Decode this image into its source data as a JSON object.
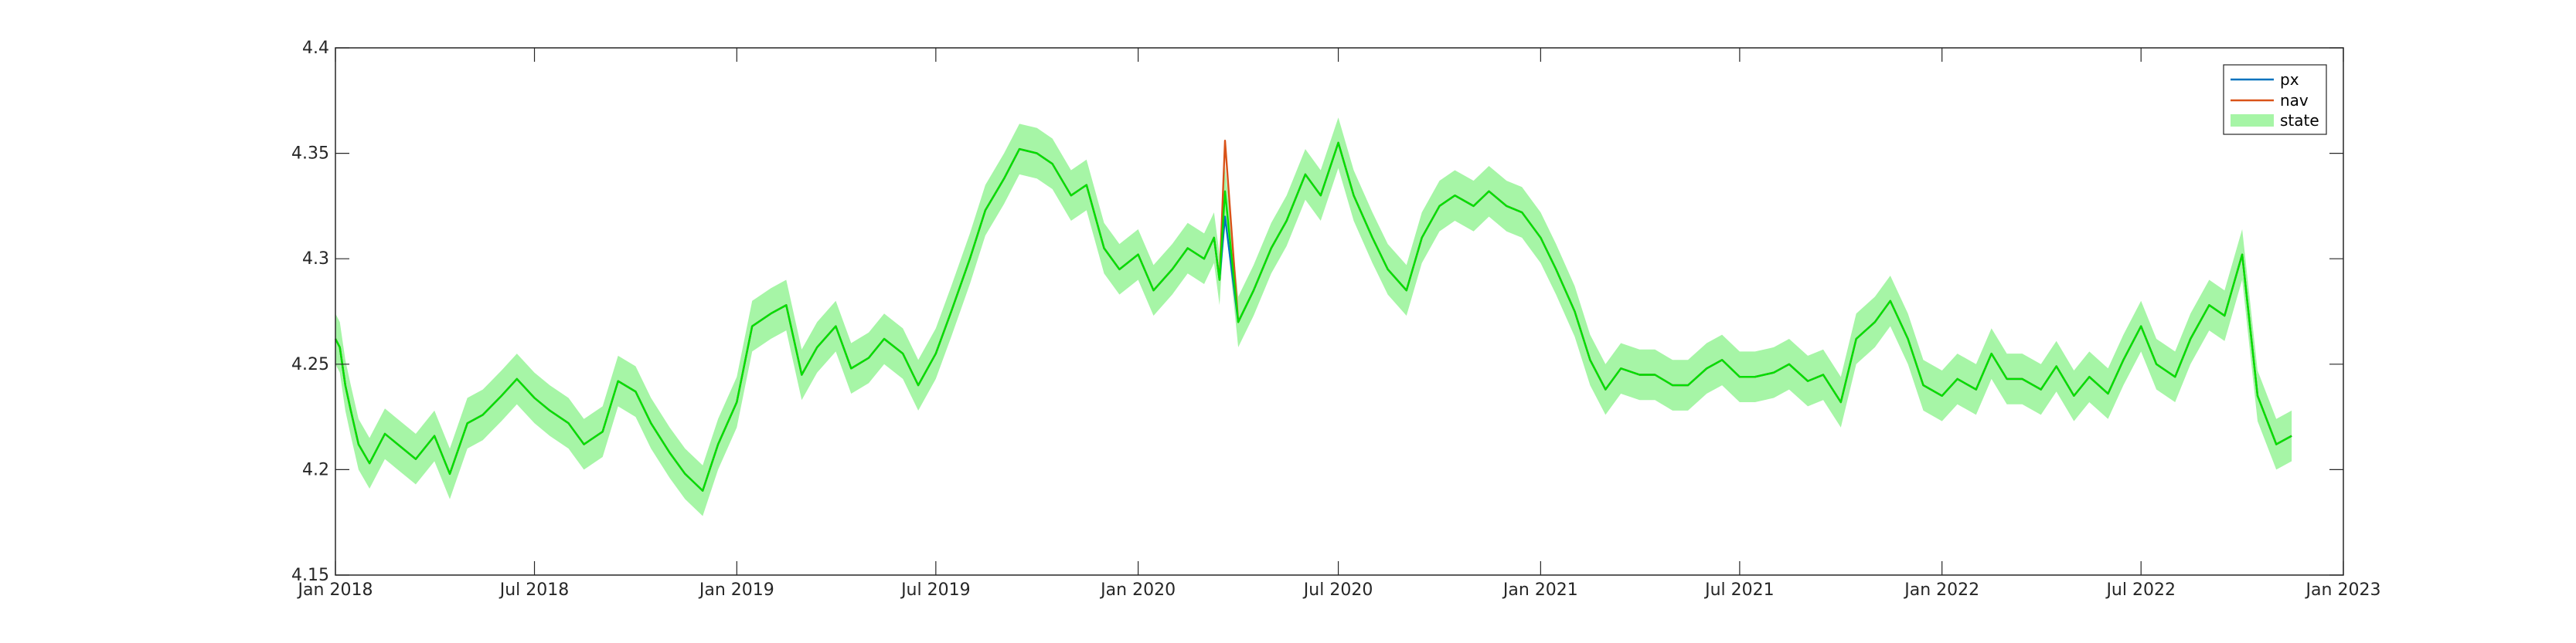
{
  "chart_data": {
    "type": "line",
    "title": "",
    "xlabel": "",
    "ylabel": "",
    "x_range": [
      "2018-01-01",
      "2023-01-01"
    ],
    "ylim": [
      4.15,
      4.4
    ],
    "x_ticks": [
      {
        "date": "2018-01-01",
        "label": "Jan 2018"
      },
      {
        "date": "2018-07-01",
        "label": "Jul 2018"
      },
      {
        "date": "2019-01-01",
        "label": "Jan 2019"
      },
      {
        "date": "2019-07-01",
        "label": "Jul 2019"
      },
      {
        "date": "2020-01-01",
        "label": "Jan 2020"
      },
      {
        "date": "2020-07-01",
        "label": "Jul 2020"
      },
      {
        "date": "2021-01-01",
        "label": "Jan 2021"
      },
      {
        "date": "2021-07-01",
        "label": "Jul 2021"
      },
      {
        "date": "2022-01-01",
        "label": "Jan 2022"
      },
      {
        "date": "2022-07-01",
        "label": "Jul 2022"
      },
      {
        "date": "2023-01-01",
        "label": "Jan 2023"
      }
    ],
    "y_ticks": [
      {
        "value": 4.15,
        "label": "4.15"
      },
      {
        "value": 4.2,
        "label": "4.2"
      },
      {
        "value": 4.25,
        "label": "4.25"
      },
      {
        "value": 4.3,
        "label": "4.3"
      },
      {
        "value": 4.35,
        "label": "4.35"
      },
      {
        "value": 4.4,
        "label": "4.4"
      }
    ],
    "grid": false,
    "legend_position": "top-right",
    "band_halfwidth": 0.012,
    "series": [
      {
        "name": "px",
        "kind": "line",
        "color": "#0072BD"
      },
      {
        "name": "nav",
        "kind": "line",
        "color": "#D95319"
      },
      {
        "name": "state",
        "kind": "line+band",
        "color": "#00E000",
        "band_color": "#A6F5A6"
      }
    ],
    "x": [
      "2018-01-01",
      "2018-01-05",
      "2018-01-10",
      "2018-01-15",
      "2018-01-22",
      "2018-02-01",
      "2018-02-15",
      "2018-03-01",
      "2018-03-15",
      "2018-04-01",
      "2018-04-15",
      "2018-05-01",
      "2018-05-15",
      "2018-06-01",
      "2018-06-15",
      "2018-07-01",
      "2018-07-15",
      "2018-08-01",
      "2018-08-15",
      "2018-09-01",
      "2018-09-15",
      "2018-10-01",
      "2018-10-15",
      "2018-11-01",
      "2018-11-15",
      "2018-12-01",
      "2018-12-15",
      "2019-01-01",
      "2019-01-15",
      "2019-02-01",
      "2019-02-15",
      "2019-03-01",
      "2019-03-15",
      "2019-04-01",
      "2019-04-15",
      "2019-05-01",
      "2019-05-15",
      "2019-06-01",
      "2019-06-15",
      "2019-07-01",
      "2019-07-15",
      "2019-08-01",
      "2019-08-15",
      "2019-09-01",
      "2019-09-15",
      "2019-10-01",
      "2019-10-15",
      "2019-11-01",
      "2019-11-15",
      "2019-12-01",
      "2019-12-15",
      "2020-01-01",
      "2020-01-15",
      "2020-02-01",
      "2020-02-15",
      "2020-03-01",
      "2020-03-10",
      "2020-03-15",
      "2020-03-20",
      "2020-04-01",
      "2020-04-15",
      "2020-05-01",
      "2020-05-15",
      "2020-06-01",
      "2020-06-15",
      "2020-07-01",
      "2020-07-15",
      "2020-08-01",
      "2020-08-15",
      "2020-09-01",
      "2020-09-15",
      "2020-10-01",
      "2020-10-15",
      "2020-11-01",
      "2020-11-15",
      "2020-12-01",
      "2020-12-15",
      "2021-01-01",
      "2021-01-15",
      "2021-02-01",
      "2021-02-15",
      "2021-03-01",
      "2021-03-15",
      "2021-04-01",
      "2021-04-15",
      "2021-05-01",
      "2021-05-15",
      "2021-06-01",
      "2021-06-15",
      "2021-07-01",
      "2021-07-15",
      "2021-08-01",
      "2021-08-15",
      "2021-09-01",
      "2021-09-15",
      "2021-10-01",
      "2021-10-15",
      "2021-11-01",
      "2021-11-15",
      "2021-12-01",
      "2021-12-15",
      "2022-01-01",
      "2022-01-15",
      "2022-02-01",
      "2022-02-15",
      "2022-03-01",
      "2022-03-15",
      "2022-04-01",
      "2022-04-15",
      "2022-05-01",
      "2022-05-15",
      "2022-06-01",
      "2022-06-15",
      "2022-07-01",
      "2022-07-15",
      "2022-08-01",
      "2022-08-15",
      "2022-09-01",
      "2022-09-15",
      "2022-10-01",
      "2022-10-15",
      "2022-11-01",
      "2022-11-15"
    ],
    "values": {
      "px": [
        4.262,
        4.258,
        4.24,
        4.228,
        4.212,
        4.203,
        4.217,
        4.211,
        4.205,
        4.216,
        4.198,
        4.222,
        4.226,
        4.235,
        4.243,
        4.234,
        4.228,
        4.222,
        4.212,
        4.218,
        4.242,
        4.237,
        4.222,
        4.208,
        4.198,
        4.19,
        4.212,
        4.232,
        4.268,
        4.274,
        4.278,
        4.245,
        4.258,
        4.268,
        4.248,
        4.253,
        4.262,
        4.255,
        4.24,
        4.255,
        4.275,
        4.3,
        4.323,
        4.338,
        4.352,
        4.35,
        4.345,
        4.33,
        4.335,
        4.305,
        4.295,
        4.302,
        4.285,
        4.295,
        4.305,
        4.3,
        4.31,
        4.29,
        4.32,
        4.27,
        4.285,
        4.305,
        4.318,
        4.34,
        4.33,
        4.355,
        4.33,
        4.31,
        4.295,
        4.285,
        4.31,
        4.325,
        4.33,
        4.325,
        4.332,
        4.325,
        4.322,
        4.31,
        4.295,
        4.275,
        4.252,
        4.238,
        4.248,
        4.245,
        4.245,
        4.24,
        4.24,
        4.248,
        4.252,
        4.244,
        4.244,
        4.246,
        4.25,
        4.242,
        4.245,
        4.232,
        4.262,
        4.27,
        4.28,
        4.262,
        4.24,
        4.235,
        4.243,
        4.238,
        4.255,
        4.243,
        4.243,
        4.238,
        4.249,
        4.235,
        4.244,
        4.236,
        4.252,
        4.268,
        4.25,
        4.244,
        4.262,
        4.278,
        4.273,
        4.302,
        4.235,
        4.212,
        4.216
      ],
      "nav": [
        4.262,
        4.258,
        4.24,
        4.228,
        4.212,
        4.203,
        4.217,
        4.211,
        4.205,
        4.216,
        4.198,
        4.222,
        4.226,
        4.235,
        4.243,
        4.234,
        4.228,
        4.222,
        4.212,
        4.218,
        4.242,
        4.237,
        4.222,
        4.208,
        4.198,
        4.19,
        4.212,
        4.232,
        4.268,
        4.274,
        4.278,
        4.245,
        4.258,
        4.268,
        4.248,
        4.253,
        4.262,
        4.255,
        4.24,
        4.255,
        4.275,
        4.3,
        4.323,
        4.338,
        4.352,
        4.35,
        4.345,
        4.33,
        4.335,
        4.305,
        4.295,
        4.302,
        4.285,
        4.295,
        4.305,
        4.3,
        4.31,
        4.29,
        4.356,
        4.27,
        4.285,
        4.305,
        4.318,
        4.34,
        4.33,
        4.355,
        4.33,
        4.31,
        4.295,
        4.285,
        4.31,
        4.325,
        4.33,
        4.325,
        4.332,
        4.325,
        4.322,
        4.31,
        4.295,
        4.275,
        4.252,
        4.238,
        4.248,
        4.245,
        4.245,
        4.24,
        4.24,
        4.248,
        4.252,
        4.244,
        4.244,
        4.246,
        4.25,
        4.242,
        4.245,
        4.232,
        4.262,
        4.27,
        4.28,
        4.262,
        4.24,
        4.235,
        4.243,
        4.238,
        4.255,
        4.243,
        4.243,
        4.238,
        4.249,
        4.235,
        4.244,
        4.236,
        4.252,
        4.268,
        4.25,
        4.244,
        4.262,
        4.278,
        4.273,
        4.302,
        4.235,
        4.212,
        4.216
      ],
      "state": [
        4.262,
        4.258,
        4.24,
        4.228,
        4.212,
        4.203,
        4.217,
        4.211,
        4.205,
        4.216,
        4.198,
        4.222,
        4.226,
        4.235,
        4.243,
        4.234,
        4.228,
        4.222,
        4.212,
        4.218,
        4.242,
        4.237,
        4.222,
        4.208,
        4.198,
        4.19,
        4.212,
        4.232,
        4.268,
        4.274,
        4.278,
        4.245,
        4.258,
        4.268,
        4.248,
        4.253,
        4.262,
        4.255,
        4.24,
        4.255,
        4.275,
        4.3,
        4.323,
        4.338,
        4.352,
        4.35,
        4.345,
        4.33,
        4.335,
        4.305,
        4.295,
        4.302,
        4.285,
        4.295,
        4.305,
        4.3,
        4.31,
        4.29,
        4.332,
        4.27,
        4.285,
        4.305,
        4.318,
        4.34,
        4.33,
        4.355,
        4.33,
        4.31,
        4.295,
        4.285,
        4.31,
        4.325,
        4.33,
        4.325,
        4.332,
        4.325,
        4.322,
        4.31,
        4.295,
        4.275,
        4.252,
        4.238,
        4.248,
        4.245,
        4.245,
        4.24,
        4.24,
        4.248,
        4.252,
        4.244,
        4.244,
        4.246,
        4.25,
        4.242,
        4.245,
        4.232,
        4.262,
        4.27,
        4.28,
        4.262,
        4.24,
        4.235,
        4.243,
        4.238,
        4.255,
        4.243,
        4.243,
        4.238,
        4.249,
        4.235,
        4.244,
        4.236,
        4.252,
        4.268,
        4.25,
        4.244,
        4.262,
        4.278,
        4.273,
        4.302,
        4.235,
        4.212,
        4.216
      ]
    }
  }
}
